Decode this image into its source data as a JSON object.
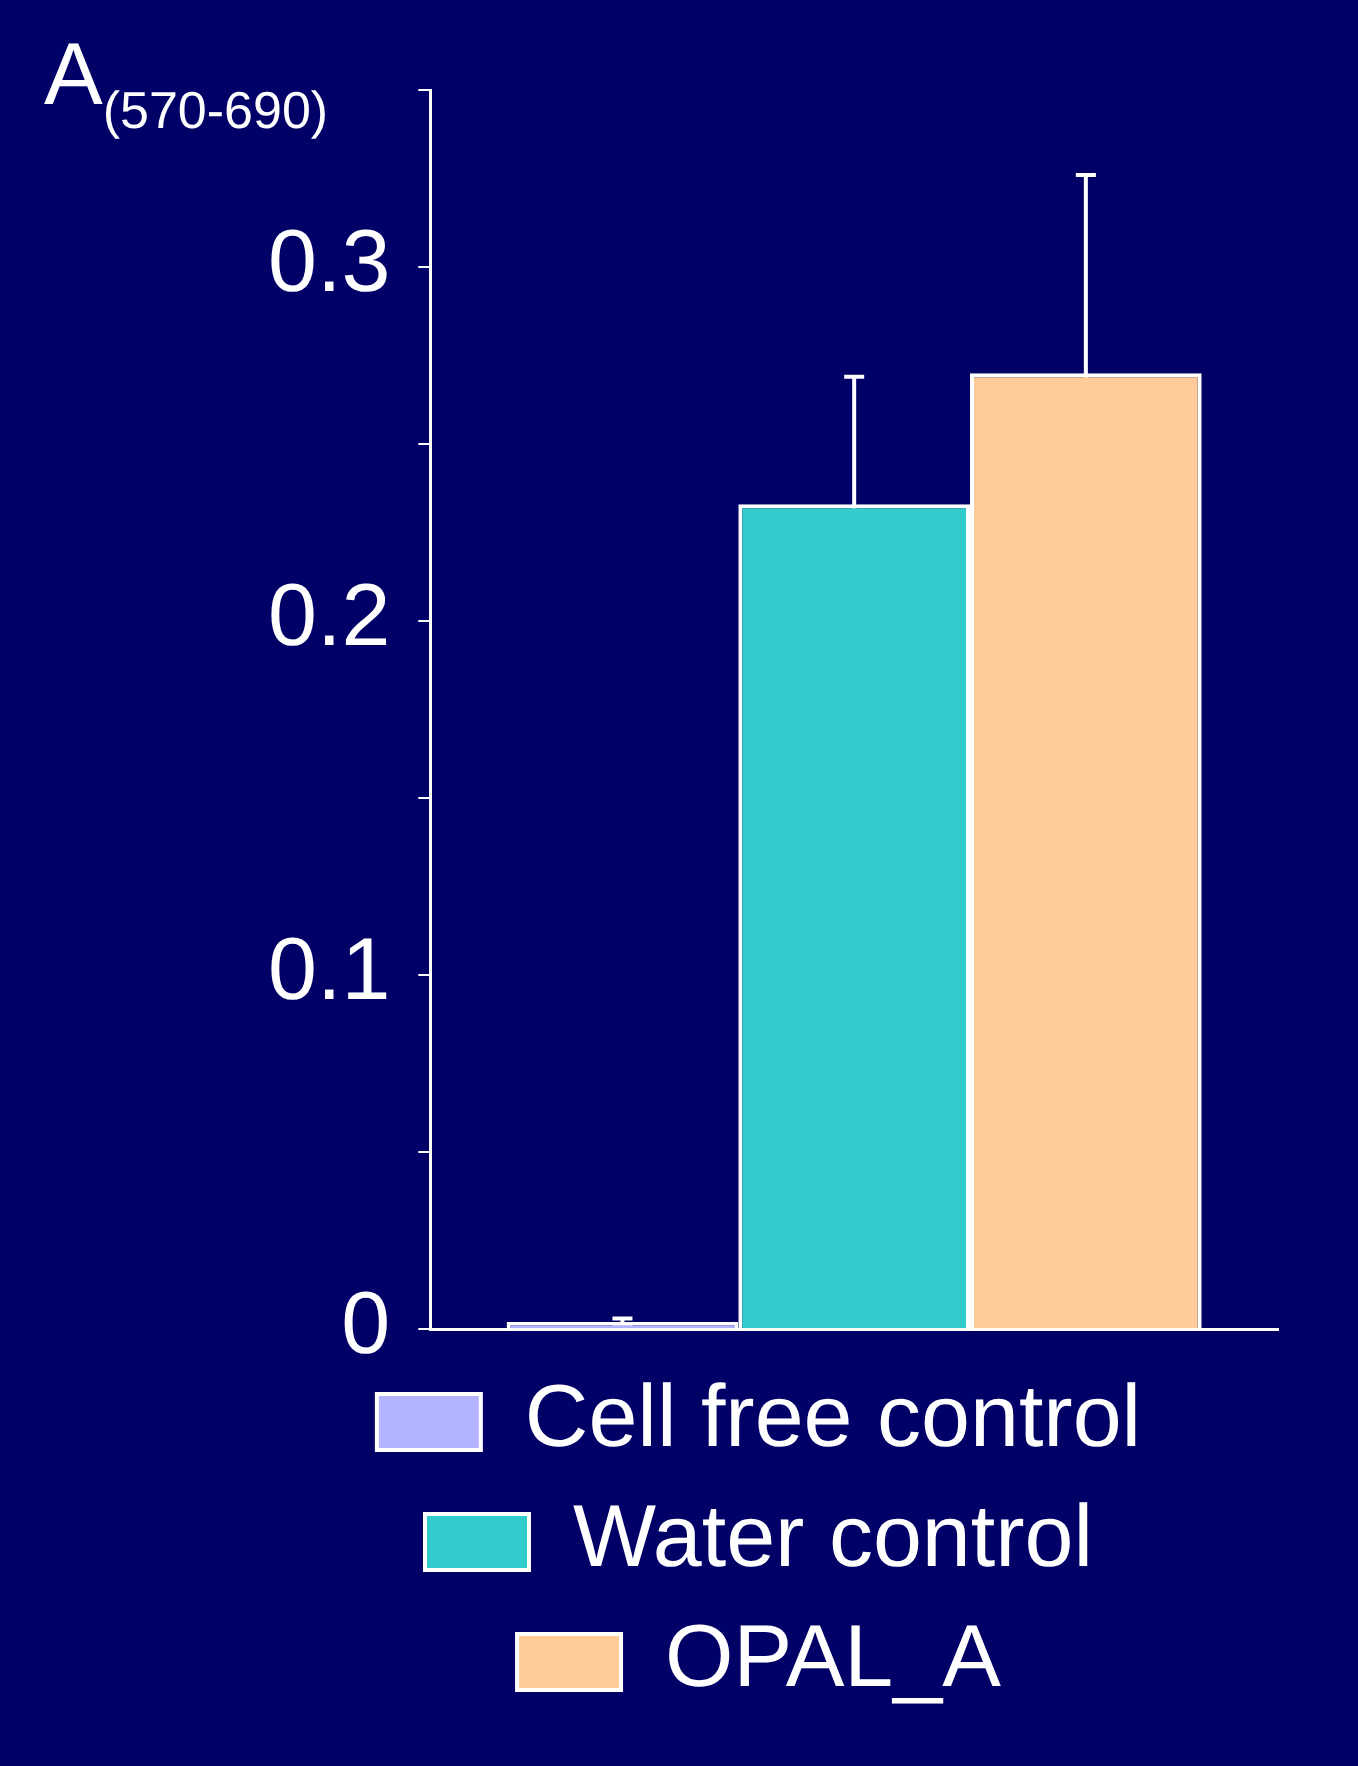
{
  "chart_data": {
    "type": "bar",
    "ylabel": "A$_{(570-690)}$",
    "categories": [
      null
    ],
    "series": [
      {
        "name": "Cell free control",
        "color": "#b3b3ff",
        "values": [
          0.002
        ],
        "errors": [
          0.001
        ]
      },
      {
        "name": "Water control",
        "color": "#33cccc",
        "values": [
          0.233
        ],
        "errors": [
          0.036
        ]
      },
      {
        "name": "OPAL_A",
        "color": "#ffcc99",
        "values": [
          0.27
        ],
        "errors": [
          0.056
        ]
      }
    ],
    "ylim": [
      0,
      0.35
    ],
    "yticks": [
      0,
      {
        "value": 0.05,
        "label": null
      },
      0.1,
      {
        "value": 0.15,
        "label": null
      },
      0.2,
      {
        "value": 0.25,
        "label": null
      },
      0.3,
      {
        "value": 0.35,
        "label": null
      }
    ],
    "grid": false,
    "legend": "bottom"
  }
}
